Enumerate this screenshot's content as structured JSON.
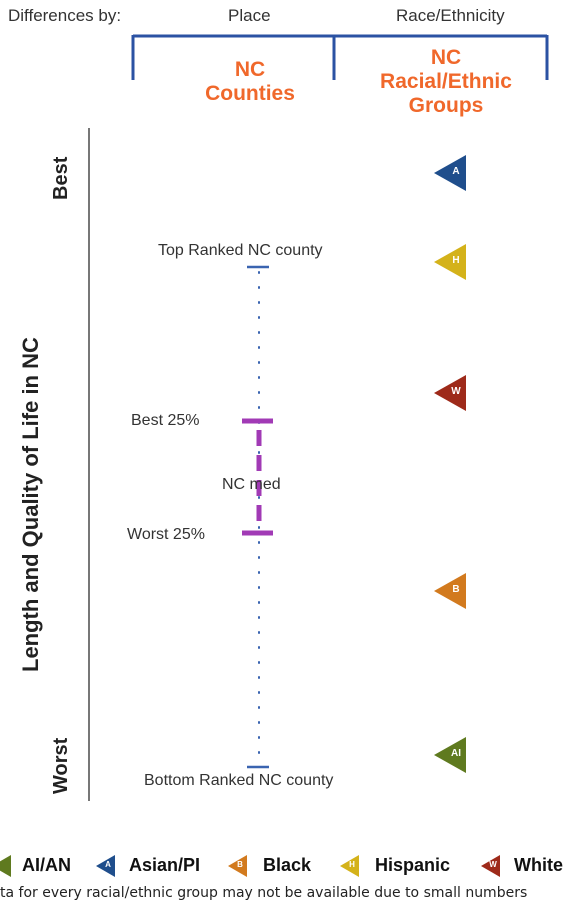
{
  "header": {
    "differences_by": "Differences by:",
    "place": "Place",
    "race_ethnicity": "Race/Ethnicity"
  },
  "columns": {
    "counties": "NC\nCounties",
    "groups": "NC\nRacial/Ethnic\nGroups"
  },
  "y_axis": {
    "title": "Length and Quality of Life in NC",
    "top": "Best",
    "bottom": "Worst"
  },
  "county_range": {
    "top_label": "Top Ranked NC county",
    "best25_label": "Best 25%",
    "median_label": "NC med",
    "worst25_label": "Worst 25%",
    "bottom_label": "Bottom Ranked NC county"
  },
  "groups": [
    {
      "code": "A",
      "name": "Asian/PI",
      "color": "#1f4e8c"
    },
    {
      "code": "H",
      "name": "Hispanic",
      "color": "#d4b21a"
    },
    {
      "code": "W",
      "name": "White",
      "color": "#9e2a1a"
    },
    {
      "code": "B",
      "name": "Black",
      "color": "#d27a1e"
    },
    {
      "code": "AI",
      "name": "AI/AN",
      "color": "#5f7a1f"
    }
  ],
  "legend": [
    {
      "code": "AI",
      "name": "AI/AN",
      "color": "#5f7a1f"
    },
    {
      "code": "A",
      "name": "Asian/PI",
      "color": "#1f4e8c"
    },
    {
      "code": "B",
      "name": "Black",
      "color": "#d27a1e"
    },
    {
      "code": "H",
      "name": "Hispanic",
      "color": "#d4b21a"
    },
    {
      "code": "W",
      "name": "White",
      "color": "#9e2a1a"
    }
  ],
  "note": "ta for every racial/ethnic group may not be available due to small numbers",
  "colors": {
    "bracket": "#2b52a3",
    "range": "#a13ab5",
    "tick": "#3a64b0",
    "header_accent": "#f0682b"
  }
}
